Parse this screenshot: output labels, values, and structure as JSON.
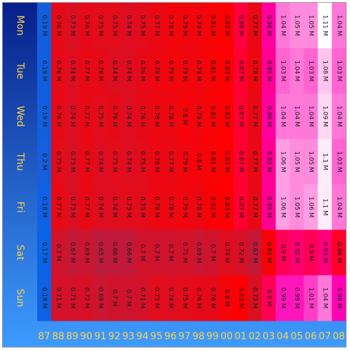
{
  "chart_data": {
    "type": "heatmap",
    "title": "",
    "xlabel": "",
    "ylabel": "",
    "legend": "none",
    "x_categories": [
      "87",
      "88",
      "89",
      "90",
      "91",
      "92",
      "93",
      "94",
      "95",
      "96",
      "97",
      "98",
      "99",
      "00",
      "01",
      "02",
      "03",
      "04",
      "05",
      "06",
      "07",
      "08"
    ],
    "y_categories": [
      "Mon",
      "Tue",
      "Wed",
      "Thu",
      "Fri",
      "Sat",
      "Sun"
    ],
    "values": [
      [
        0.19,
        0.76,
        0.73,
        0.76,
        0.75,
        0.75,
        0.74,
        0.75,
        0.77,
        0.79,
        0.79,
        0.79,
        0.81,
        0.83,
        0.88,
        0.77,
        0.96,
        1.04,
        1.05,
        1.05,
        1.11,
        1.04
      ],
      [
        0.19,
        0.76,
        0.74,
        0.77,
        0.76,
        0.74,
        0.74,
        0.76,
        0.78,
        0.79,
        0.79,
        0.79,
        0.81,
        0.83,
        0.87,
        0.78,
        0.95,
        1.03,
        1.04,
        1.03,
        1.08,
        1.03
      ],
      [
        0.19,
        0.76,
        0.74,
        0.77,
        0.75,
        0.76,
        0.74,
        0.76,
        0.78,
        0.78,
        0.8,
        0.79,
        0.81,
        0.83,
        0.87,
        0.77,
        0.96,
        1.04,
        1.04,
        1.04,
        1.09,
        1.04
      ],
      [
        0.2,
        0.75,
        0.73,
        0.77,
        0.74,
        0.75,
        0.74,
        0.75,
        0.78,
        0.77,
        0.79,
        0.8,
        0.81,
        0.83,
        0.87,
        0.77,
        0.95,
        1.06,
        1.05,
        1.05,
        1.1,
        1.03
      ],
      [
        0.18,
        0.77,
        0.73,
        0.77,
        0.74,
        0.74,
        0.75,
        0.75,
        0.78,
        0.78,
        0.79,
        0.78,
        0.82,
        0.83,
        0.87,
        0.77,
        0.95,
        1.06,
        1.05,
        1.06,
        1.1,
        1.04
      ],
      [
        0.17,
        0.7,
        0.67,
        0.69,
        0.65,
        0.66,
        0.66,
        0.7,
        0.7,
        0.7,
        0.71,
        0.69,
        0.7,
        0.74,
        0.72,
        0.67,
        0.81,
        0.9,
        0.92,
        0.9,
        0.93,
        0.86
      ],
      [
        0.18,
        0.71,
        0.71,
        0.72,
        0.69,
        0.7,
        0.7,
        0.71,
        0.75,
        0.74,
        0.75,
        0.76,
        0.76,
        0.8,
        0.83,
        0.73,
        0.9,
        0.99,
        0.99,
        1.01,
        1.04,
        0.98
      ]
    ],
    "value_suffix": " M",
    "colors": {
      "background_top": "#061f8a",
      "background_bottom": "#3d9bff",
      "label_color": "#ffd24a",
      "cell_text": "#1a1a1a",
      "scale": [
        "#0a62e6",
        "#ff0000",
        "#ff00b4",
        "#ffffff"
      ]
    }
  }
}
